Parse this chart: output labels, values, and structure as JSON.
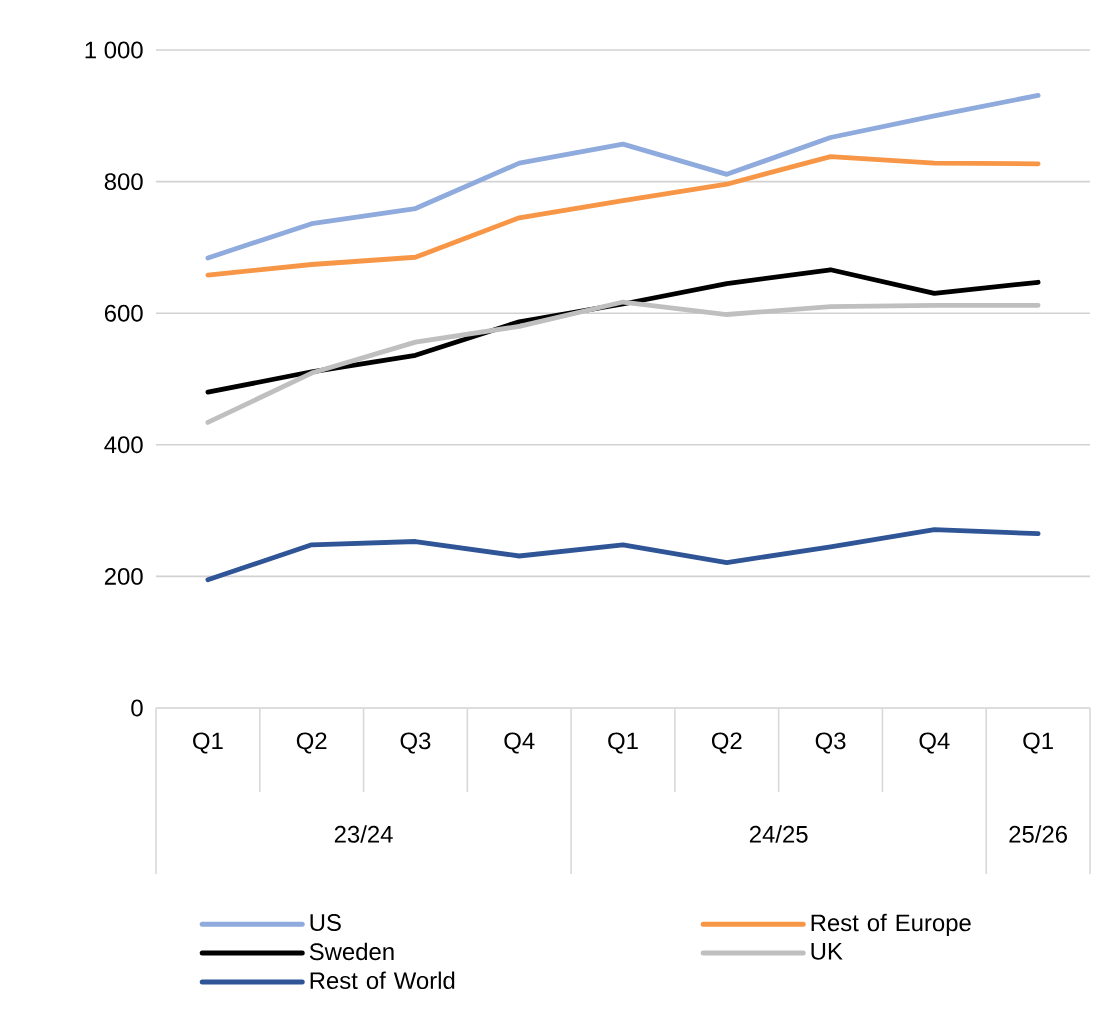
{
  "chart_data": {
    "type": "line",
    "categories": [
      "Q1",
      "Q2",
      "Q3",
      "Q4",
      "Q1",
      "Q2",
      "Q3",
      "Q4",
      "Q1"
    ],
    "annotations": [
      "23/24",
      "24/25",
      "25/26"
    ],
    "series": [
      {
        "name": "US",
        "color": "#8faadc",
        "values": [
          684,
          736,
          759,
          828,
          857,
          811,
          867,
          900,
          931
        ]
      },
      {
        "name": "Rest of Europe",
        "color": "#f79646",
        "values": [
          658,
          674,
          685,
          745,
          771,
          796,
          838,
          828,
          827
        ]
      },
      {
        "name": "Sweden",
        "color": "#000000",
        "values": [
          480,
          511,
          536,
          587,
          614,
          645,
          666,
          630,
          647
        ]
      },
      {
        "name": "UK",
        "color": "#bfbfbf",
        "values": [
          434,
          509,
          556,
          580,
          617,
          598,
          610,
          612,
          612
        ]
      },
      {
        "name": "Rest of World",
        "color": "#2f5597",
        "values": [
          195,
          248,
          253,
          231,
          248,
          221,
          245,
          271,
          265
        ]
      }
    ],
    "ylim": [
      0,
      1000
    ],
    "yticks": [
      0,
      200,
      400,
      600,
      800,
      {
        "value": 1000,
        "label": "1 000"
      }
    ],
    "grid": "y",
    "legend": "bottom",
    "marker": "none",
    "line_style": "solid"
  }
}
